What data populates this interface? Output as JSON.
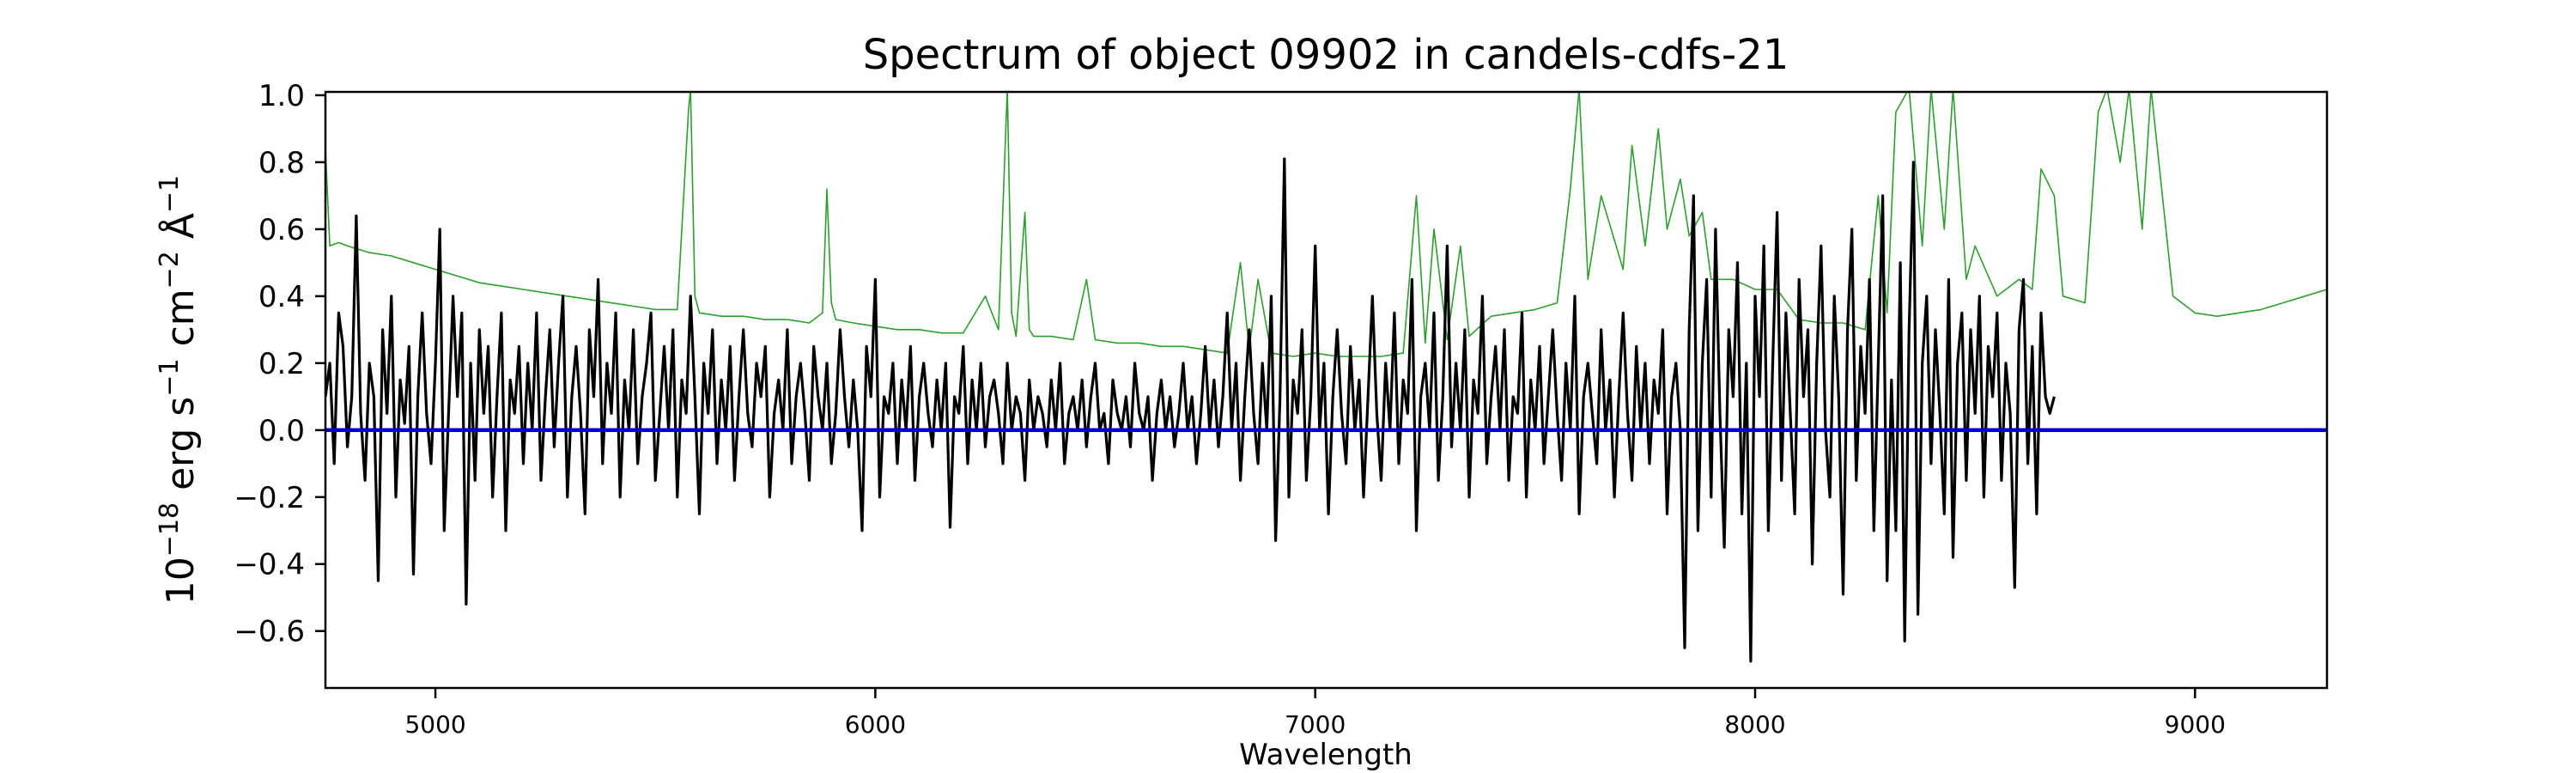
{
  "chart_data": {
    "type": "line",
    "title": "Spectrum of object 09902 in candels-cdfs-21",
    "xlabel": "Wavelength",
    "ylabel": {
      "base": "10",
      "exp1": "−18",
      "part1": " erg s",
      "exp2": "−1",
      "part2": " cm",
      "exp3": "−2",
      "part3": " Å",
      "exp4": "−1"
    },
    "xlim": [
      4750,
      9300
    ],
    "ylim": [
      -0.77,
      1.01
    ],
    "xticks": [
      5000,
      6000,
      7000,
      8000,
      9000
    ],
    "xtick_labels": [
      "5000",
      "6000",
      "7000",
      "8000",
      "9000"
    ],
    "yticks": [
      -0.6,
      -0.4,
      -0.2,
      0.0,
      0.2,
      0.4,
      0.6,
      0.8,
      1.0
    ],
    "ytick_labels": [
      "−0.6",
      "−0.4",
      "−0.2",
      "0.0",
      "0.2",
      "0.4",
      "0.6",
      "0.8",
      "1.0"
    ],
    "grid": false,
    "series": [
      {
        "role": "noise",
        "color": "#2ca02c",
        "x": [
          4750,
          4760,
          4780,
          4800,
          4850,
          4900,
          4950,
          5000,
          5050,
          5100,
          5150,
          5200,
          5250,
          5300,
          5350,
          5400,
          5450,
          5500,
          5550,
          5575,
          5580,
          5590,
          5600,
          5650,
          5700,
          5750,
          5800,
          5850,
          5880,
          5890,
          5900,
          5910,
          5950,
          6000,
          6050,
          6100,
          6150,
          6200,
          6250,
          6280,
          6300,
          6310,
          6320,
          6340,
          6350,
          6360,
          6400,
          6450,
          6480,
          6500,
          6550,
          6600,
          6650,
          6700,
          6750,
          6800,
          6830,
          6850,
          6870,
          6900,
          6950,
          7000,
          7050,
          7100,
          7150,
          7200,
          7230,
          7250,
          7270,
          7300,
          7330,
          7350,
          7400,
          7450,
          7500,
          7550,
          7580,
          7600,
          7620,
          7650,
          7700,
          7720,
          7750,
          7780,
          7800,
          7830,
          7850,
          7880,
          7900,
          7950,
          8000,
          8050,
          8100,
          8150,
          8200,
          8250,
          8280,
          8300,
          8320,
          8350,
          8380,
          8400,
          8430,
          8450,
          8480,
          8500,
          8550,
          8600,
          8630,
          8650,
          8680,
          8700,
          8750,
          8780,
          8800,
          8830,
          8850,
          8880,
          8900,
          8950,
          9000,
          9050,
          9100,
          9150,
          9200,
          9250,
          9300
        ],
        "y": [
          0.84,
          0.55,
          0.56,
          0.55,
          0.53,
          0.52,
          0.5,
          0.48,
          0.46,
          0.44,
          0.43,
          0.42,
          0.41,
          0.4,
          0.39,
          0.38,
          0.37,
          0.36,
          0.36,
          0.95,
          1.02,
          0.4,
          0.35,
          0.34,
          0.34,
          0.33,
          0.33,
          0.32,
          0.35,
          0.72,
          0.38,
          0.33,
          0.32,
          0.31,
          0.3,
          0.3,
          0.29,
          0.29,
          0.4,
          0.3,
          1.02,
          0.35,
          0.28,
          0.65,
          0.3,
          0.28,
          0.28,
          0.27,
          0.45,
          0.27,
          0.26,
          0.26,
          0.25,
          0.25,
          0.24,
          0.23,
          0.5,
          0.24,
          0.45,
          0.23,
          0.22,
          0.23,
          0.22,
          0.22,
          0.22,
          0.23,
          0.7,
          0.26,
          0.6,
          0.27,
          0.55,
          0.28,
          0.34,
          0.35,
          0.36,
          0.38,
          0.72,
          1.02,
          0.45,
          0.7,
          0.48,
          0.85,
          0.55,
          0.9,
          0.6,
          0.75,
          0.58,
          0.65,
          0.45,
          0.45,
          0.42,
          0.42,
          0.33,
          0.32,
          0.32,
          0.3,
          0.7,
          0.35,
          0.95,
          1.02,
          0.55,
          1.02,
          0.6,
          1.02,
          0.45,
          0.55,
          0.4,
          0.45,
          0.42,
          0.78,
          0.7,
          0.4,
          0.38,
          0.95,
          1.02,
          0.8,
          1.02,
          0.6,
          1.02,
          0.4,
          0.35,
          0.34,
          0.35,
          0.36,
          0.38,
          0.4,
          0.42
        ]
      },
      {
        "role": "flux",
        "color": "#000000",
        "x_start": 4750,
        "x_step": 10,
        "y": [
          0.1,
          0.2,
          -0.1,
          0.35,
          0.25,
          -0.05,
          0.1,
          0.64,
          0.05,
          -0.15,
          0.2,
          0.1,
          -0.45,
          0.3,
          0.05,
          0.4,
          -0.2,
          0.15,
          0.02,
          0.25,
          -0.43,
          0.1,
          0.35,
          0.05,
          -0.1,
          0.2,
          0.6,
          -0.3,
          0.05,
          0.4,
          0.1,
          0.35,
          -0.52,
          0.2,
          -0.15,
          0.3,
          0.05,
          0.25,
          -0.2,
          0.1,
          0.35,
          -0.3,
          0.15,
          0.05,
          0.25,
          -0.1,
          0.2,
          0.0,
          0.35,
          -0.15,
          0.1,
          0.3,
          -0.05,
          0.2,
          0.4,
          -0.2,
          0.1,
          0.25,
          0.05,
          -0.25,
          0.3,
          0.1,
          0.45,
          -0.1,
          0.2,
          0.05,
          0.35,
          -0.2,
          0.15,
          0.0,
          0.3,
          -0.1,
          0.1,
          0.2,
          0.35,
          -0.15,
          0.05,
          0.25,
          0.0,
          0.3,
          -0.2,
          0.15,
          0.05,
          0.4,
          0.1,
          -0.25,
          0.2,
          0.05,
          0.3,
          -0.1,
          0.15,
          0.0,
          0.25,
          -0.15,
          0.1,
          0.3,
          0.05,
          -0.05,
          0.2,
          0.1,
          0.25,
          -0.2,
          0.05,
          0.15,
          0.0,
          0.3,
          -0.1,
          0.1,
          0.2,
          0.05,
          -0.15,
          0.25,
          0.1,
          0.0,
          0.2,
          -0.1,
          0.05,
          0.3,
          0.1,
          -0.05,
          0.15,
          0.0,
          -0.3,
          0.25,
          0.1,
          0.45,
          -0.2,
          0.1,
          0.05,
          0.2,
          -0.1,
          0.15,
          0.0,
          0.25,
          -0.15,
          0.1,
          0.2,
          0.05,
          -0.05,
          0.15,
          0.0,
          0.2,
          -0.29,
          0.1,
          0.05,
          0.25,
          -0.1,
          0.15,
          0.0,
          0.2,
          -0.05,
          0.1,
          0.15,
          0.05,
          -0.1,
          0.2,
          0.0,
          0.1,
          0.05,
          -0.15,
          0.15,
          0.0,
          0.1,
          0.05,
          -0.05,
          0.15,
          0.0,
          0.2,
          -0.1,
          0.05,
          0.1,
          0.0,
          0.15,
          -0.05,
          0.1,
          0.2,
          0.0,
          0.05,
          -0.1,
          0.15,
          0.05,
          0.0,
          0.1,
          -0.05,
          0.2,
          0.05,
          0.0,
          0.1,
          -0.15,
          0.05,
          0.15,
          0.0,
          0.1,
          -0.05,
          0.05,
          0.2,
          0.0,
          0.1,
          -0.1,
          0.05,
          0.25,
          0.0,
          0.15,
          -0.05,
          0.1,
          0.35,
          0.0,
          0.2,
          -0.15,
          0.1,
          0.3,
          0.05,
          -0.1,
          0.2,
          0.0,
          0.4,
          -0.33,
          0.1,
          0.81,
          -0.2,
          0.15,
          0.05,
          0.3,
          -0.15,
          0.1,
          0.55,
          0.0,
          0.2,
          -0.25,
          0.1,
          0.3,
          0.05,
          -0.1,
          0.25,
          0.0,
          0.15,
          -0.2,
          0.1,
          0.4,
          0.05,
          -0.15,
          0.2,
          0.0,
          0.35,
          -0.1,
          0.15,
          0.05,
          0.45,
          -0.3,
          0.1,
          0.2,
          0.0,
          0.35,
          -0.15,
          0.1,
          0.55,
          -0.05,
          0.2,
          0.0,
          0.3,
          -0.2,
          0.15,
          0.05,
          0.4,
          -0.1,
          0.1,
          0.25,
          0.0,
          0.3,
          -0.15,
          0.1,
          0.05,
          0.35,
          -0.2,
          0.15,
          0.0,
          0.25,
          -0.1,
          0.1,
          0.3,
          0.05,
          -0.15,
          0.2,
          0.0,
          0.4,
          -0.25,
          0.1,
          0.2,
          0.05,
          -0.1,
          0.3,
          0.0,
          0.15,
          -0.2,
          0.1,
          0.35,
          0.05,
          -0.15,
          0.25,
          0.0,
          0.2,
          -0.1,
          0.15,
          0.05,
          0.3,
          -0.25,
          0.1,
          0.2,
          0.0,
          -0.65,
          0.3,
          0.7,
          -0.3,
          0.2,
          0.45,
          -0.2,
          0.6,
          0.05,
          -0.35,
          0.3,
          0.1,
          0.5,
          -0.25,
          0.2,
          -0.69,
          0.4,
          0.1,
          0.55,
          -0.3,
          0.2,
          0.65,
          -0.15,
          0.35,
          0.05,
          -0.25,
          0.45,
          0.1,
          0.3,
          -0.4,
          0.2,
          0.55,
          0.0,
          -0.2,
          0.4,
          0.1,
          -0.49,
          0.3,
          0.6,
          -0.15,
          0.25,
          0.05,
          0.45,
          -0.3,
          0.2,
          0.7,
          -0.45,
          0.15,
          -0.3,
          0.5,
          -0.63,
          0.3,
          0.8,
          -0.55,
          0.2,
          0.4,
          -0.1,
          0.3,
          0.05,
          -0.25,
          0.45,
          -0.38,
          0.2,
          0.35,
          -0.15,
          0.3,
          0.05,
          0.4,
          -0.2,
          0.25,
          0.1,
          0.35,
          -0.15,
          0.2,
          0.05,
          -0.47,
          0.3,
          0.45,
          -0.1,
          0.25,
          -0.25,
          0.35,
          0.1,
          0.05,
          0.1
        ]
      },
      {
        "role": "model",
        "color": "#0000cc",
        "x": [
          4750,
          9300
        ],
        "y": [
          0.0,
          0.0
        ]
      }
    ]
  }
}
